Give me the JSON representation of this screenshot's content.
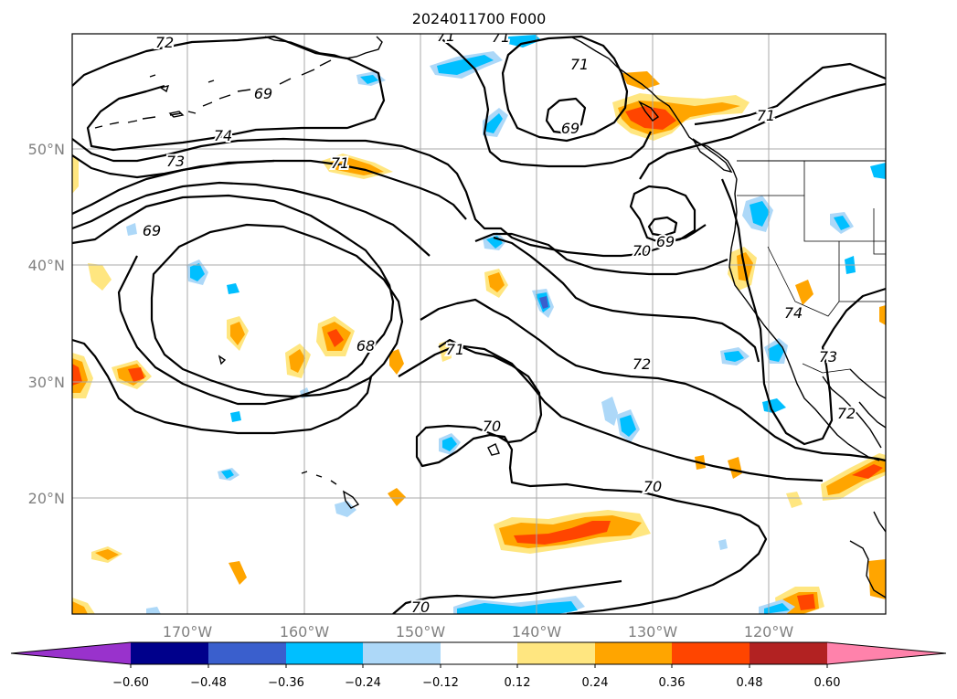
{
  "title": "2024011700 F000",
  "map": {
    "longitude_labels": [
      "170°W",
      "160°W",
      "150°W",
      "140°W",
      "130°W",
      "120°W"
    ],
    "latitude_labels": [
      "50°N",
      "40°N",
      "30°N",
      "20°N"
    ],
    "contour_labels": [
      "72",
      "71",
      "71",
      "71",
      "74",
      "73",
      "71",
      "69",
      "69",
      "69",
      "70",
      "69",
      "71",
      "68",
      "71",
      "72",
      "74",
      "73",
      "70",
      "70",
      "72",
      "70"
    ],
    "gridlines": true,
    "colors": {
      "land_outline": "#000000",
      "grid": "#aaaaaa",
      "contour": "#000000"
    }
  },
  "colorbar": {
    "tick_labels": [
      "−0.60",
      "−0.48",
      "−0.36",
      "−0.24",
      "−0.12",
      "0.12",
      "0.24",
      "0.36",
      "0.48",
      "0.60"
    ],
    "colors": [
      "#9932cc",
      "#00008b",
      "#3a5fcd",
      "#00bfff",
      "#add8f8",
      "#ffffff",
      "#ffe680",
      "#ffa500",
      "#ff4500",
      "#b22222",
      "#ff82ab"
    ],
    "extend": "both"
  }
}
